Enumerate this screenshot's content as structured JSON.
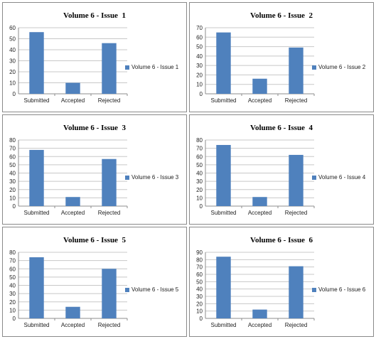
{
  "colors": {
    "bar": "#4f81bd",
    "grid": "#c8c8c8",
    "axis": "#8c8c8c"
  },
  "chart_data": [
    {
      "type": "bar",
      "title": "Volume 6 - Issue  1",
      "categories": [
        "Submitted",
        "Accepted",
        "Rejected"
      ],
      "series": [
        {
          "name": "Volume 6 - Issue 1",
          "values": [
            56,
            10,
            46
          ]
        }
      ],
      "ylim": [
        0,
        60
      ],
      "yticks": [
        0,
        10,
        20,
        30,
        40,
        50,
        60
      ],
      "grid": true,
      "legend": "right"
    },
    {
      "type": "bar",
      "title": "Volume 6 - Issue  2",
      "categories": [
        "Submitted",
        "Accepted",
        "Rejected"
      ],
      "series": [
        {
          "name": "Volume 6 - Issue 2",
          "values": [
            65,
            16,
            49
          ]
        }
      ],
      "ylim": [
        0,
        70
      ],
      "yticks": [
        0,
        10,
        20,
        30,
        40,
        50,
        60,
        70
      ],
      "grid": true,
      "legend": "right"
    },
    {
      "type": "bar",
      "title": "Volume 6 - Issue  3",
      "categories": [
        "Submitted",
        "Accepted",
        "Rejected"
      ],
      "series": [
        {
          "name": "Volume 6 - Issue 3",
          "values": [
            68,
            11,
            57
          ]
        }
      ],
      "ylim": [
        0,
        80
      ],
      "yticks": [
        0,
        10,
        20,
        30,
        40,
        50,
        60,
        70,
        80
      ],
      "grid": true,
      "legend": "right"
    },
    {
      "type": "bar",
      "title": "Volume 6 - Issue  4",
      "categories": [
        "Submitted",
        "Accepted",
        "Rejected"
      ],
      "series": [
        {
          "name": "Volume 6 - Issue 4",
          "values": [
            74,
            11,
            62
          ]
        }
      ],
      "ylim": [
        0,
        80
      ],
      "yticks": [
        0,
        10,
        20,
        30,
        40,
        50,
        60,
        70,
        80
      ],
      "grid": true,
      "legend": "right"
    },
    {
      "type": "bar",
      "title": "Volume 6 - Issue  5",
      "categories": [
        "Submitted",
        "Accepted",
        "Rejected"
      ],
      "series": [
        {
          "name": "Volume 6 - Issue 5",
          "values": [
            74,
            14,
            60
          ]
        }
      ],
      "ylim": [
        0,
        80
      ],
      "yticks": [
        0,
        10,
        20,
        30,
        40,
        50,
        60,
        70,
        80
      ],
      "grid": true,
      "legend": "right"
    },
    {
      "type": "bar",
      "title": "Volume 6 - Issue  6",
      "categories": [
        "Submitted",
        "Accepted",
        "Rejected"
      ],
      "series": [
        {
          "name": "Volume 6 - Issue 6",
          "values": [
            84,
            12,
            71
          ]
        }
      ],
      "ylim": [
        0,
        90
      ],
      "yticks": [
        0,
        10,
        20,
        30,
        40,
        50,
        60,
        70,
        80,
        90
      ],
      "grid": true,
      "legend": "right"
    }
  ]
}
